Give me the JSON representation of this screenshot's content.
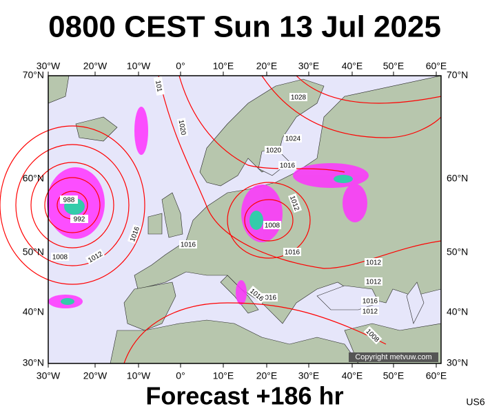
{
  "title": "0800 CEST Sun 13 Jul 2025",
  "longitude_labels_top": [
    "30°W",
    "20°W",
    "10°W",
    "0°",
    "10°E",
    "20°E",
    "30°E",
    "40°E",
    "50°E",
    "60°E"
  ],
  "longitude_labels_bottom": [
    "30°W",
    "20°W",
    "10°W",
    "0°",
    "10°E",
    "20°E",
    "30°E",
    "40°E",
    "50°E",
    "60°E"
  ],
  "latitude_labels_left": [
    "70°N",
    "60°N",
    "50°N",
    "40°N",
    "30°N"
  ],
  "latitude_labels_right": [
    "70°N",
    "60°N",
    "50°N",
    "40°N",
    "30°N"
  ],
  "isobar_labels": [
    "101",
    "1020",
    "1028",
    "1024",
    "1020",
    "1016",
    "988",
    "992",
    "1012",
    "1008",
    "1016",
    "1016",
    "1016",
    "1008",
    "1012",
    "1012",
    "1012",
    "1016",
    "1016",
    "1016",
    "1012",
    "1008"
  ],
  "copyright": "Copyright metvuw.com",
  "footer": {
    "forecast": "Forecast +186 hr",
    "code": "US6"
  }
}
